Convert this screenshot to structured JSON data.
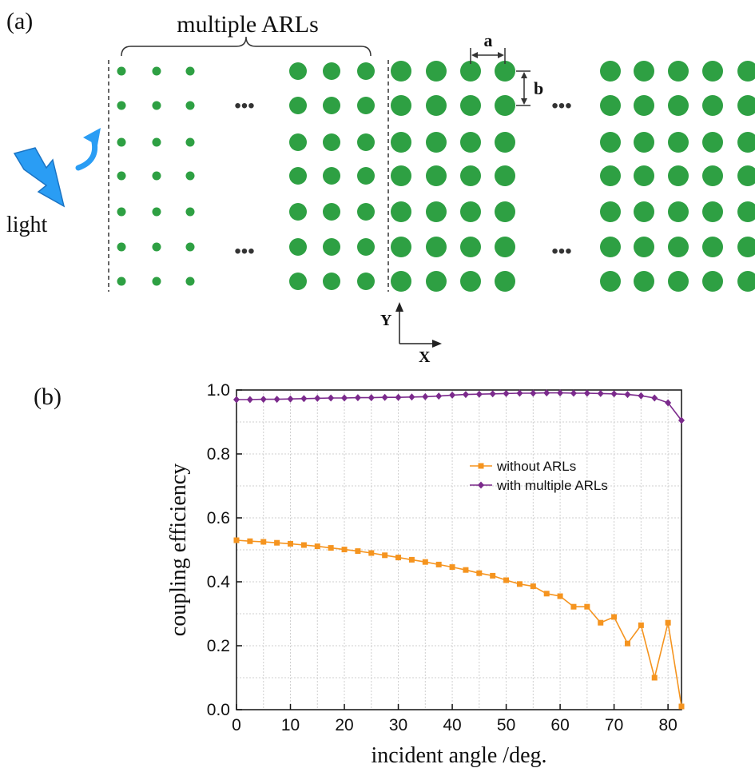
{
  "panel_a": {
    "label": "(a)",
    "brace_label": "multiple ARLs",
    "light_label": "light",
    "dim_a": "a",
    "dim_b": "b",
    "axis_y": "Y",
    "axis_x": "X",
    "ellipsis": "•••",
    "particle_color": "#2ea043",
    "arrow_color": "#1e90ff"
  },
  "panel_b": {
    "label": "(b)"
  },
  "chart_data": {
    "type": "line",
    "xlabel": "incident angle /deg.",
    "ylabel": "coupling efficiency",
    "xlim": [
      0,
      82.5
    ],
    "ylim": [
      0.0,
      1.0
    ],
    "xticks": [
      0,
      10,
      20,
      30,
      40,
      50,
      60,
      70,
      80
    ],
    "yticks": [
      0.0,
      0.2,
      0.4,
      0.6,
      0.8,
      1.0
    ],
    "ytick_labels": [
      "0.0",
      "0.2",
      "0.4",
      "0.6",
      "0.8",
      "1.0"
    ],
    "grid": true,
    "legend_position": "right",
    "x": [
      0,
      2.5,
      5,
      7.5,
      10,
      12.5,
      15,
      17.5,
      20,
      22.5,
      25,
      27.5,
      30,
      32.5,
      35,
      37.5,
      40,
      42.5,
      45,
      47.5,
      50,
      52.5,
      55,
      57.5,
      60,
      62.5,
      65,
      67.5,
      70,
      72.5,
      75,
      77.5,
      80,
      82.5
    ],
    "series": [
      {
        "name": "without ARLs",
        "color": "#f5941f",
        "marker": "square",
        "values": [
          0.53,
          0.527,
          0.525,
          0.522,
          0.519,
          0.515,
          0.511,
          0.506,
          0.501,
          0.496,
          0.49,
          0.483,
          0.476,
          0.469,
          0.462,
          0.454,
          0.446,
          0.437,
          0.427,
          0.419,
          0.405,
          0.393,
          0.386,
          0.363,
          0.355,
          0.322,
          0.322,
          0.272,
          0.29,
          0.207,
          0.264,
          0.1,
          0.272,
          0.01
        ]
      },
      {
        "name": "with multiple ARLs",
        "color": "#7b2a8c",
        "marker": "diamond",
        "values": [
          0.97,
          0.97,
          0.971,
          0.971,
          0.972,
          0.973,
          0.974,
          0.975,
          0.975,
          0.976,
          0.976,
          0.977,
          0.977,
          0.978,
          0.979,
          0.981,
          0.984,
          0.986,
          0.987,
          0.988,
          0.989,
          0.99,
          0.99,
          0.991,
          0.991,
          0.99,
          0.99,
          0.989,
          0.988,
          0.986,
          0.982,
          0.975,
          0.96,
          0.905
        ]
      }
    ]
  }
}
